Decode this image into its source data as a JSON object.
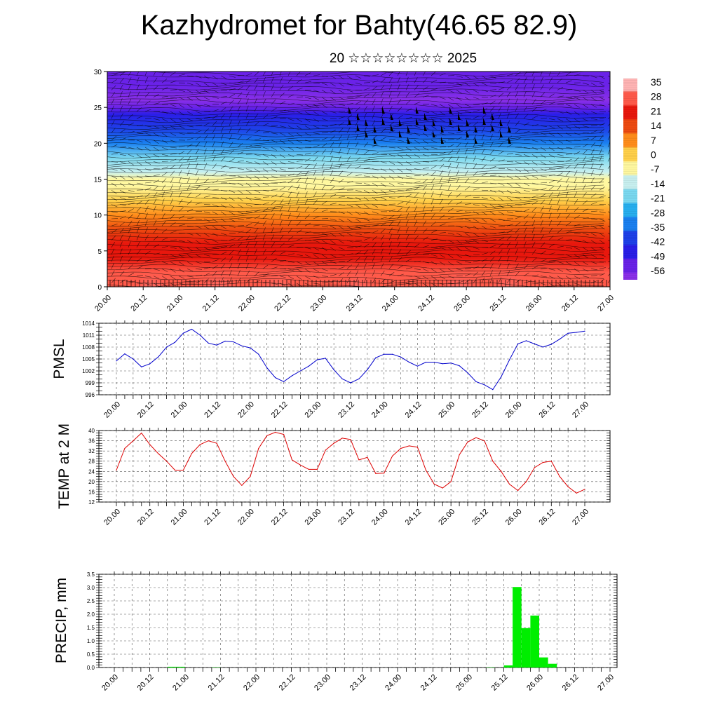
{
  "title": "Kazhydromet for Bahty(46.65 82.9)",
  "subtitle": "20 ☆☆☆☆☆☆☆☆ 2025",
  "time_labels": [
    "20.00",
    "20.12",
    "21.00",
    "21.12",
    "22.00",
    "22.12",
    "23.00",
    "23.12",
    "24.00",
    "24.12",
    "25.00",
    "25.12",
    "26.00",
    "26.12",
    "27.00"
  ],
  "chart_data": [
    {
      "type": "heatmap",
      "title": "",
      "ylabel": "",
      "ylim": [
        0,
        30
      ],
      "y_ticks": [
        0,
        5,
        10,
        15,
        20,
        25,
        30
      ],
      "x_ticks": [
        "20.00",
        "20.12",
        "21.00",
        "21.12",
        "22.00",
        "22.12",
        "23.00",
        "23.12",
        "24.00",
        "24.12",
        "25.00",
        "25.12",
        "26.00",
        "26.12",
        "27.00"
      ],
      "colorbar_labels": [
        "35",
        "28",
        "21",
        "14",
        "7",
        "0",
        "-7",
        "-14",
        "-21",
        "-28",
        "-35",
        "-42",
        "-49",
        "-56"
      ],
      "temperature_profile": {
        "levels": [
          0,
          2,
          4,
          6,
          8,
          10,
          12,
          14,
          15,
          16,
          18,
          20,
          22,
          24,
          25,
          26,
          28,
          30
        ],
        "values": [
          30,
          25,
          22,
          18,
          12,
          6,
          1,
          -5,
          -9,
          -14,
          -22,
          -32,
          -42,
          -52,
          -56,
          -60,
          -58,
          -57
        ]
      },
      "colors": {
        "warm_peak": "#ffb8b8",
        "red": "#e8170d",
        "yellow": "#ffe96a",
        "cyan": "#2cc8f0",
        "blue": "#1a2ee8",
        "violet": "#7a22e8"
      }
    },
    {
      "type": "line",
      "ylabel": "PMSL",
      "ylim": [
        996,
        1014
      ],
      "y_ticks": [
        996,
        999,
        1002,
        1005,
        1008,
        1011,
        1014
      ],
      "color": "#0000cc",
      "x": [
        0,
        3,
        6,
        9,
        12,
        15,
        18,
        21,
        24,
        27,
        30,
        33,
        36,
        39,
        42,
        45,
        48,
        51,
        54,
        57,
        60,
        63,
        66,
        69,
        72,
        75,
        78,
        81,
        84,
        87,
        90,
        93,
        96,
        99,
        102,
        105,
        108,
        111,
        114,
        117,
        120,
        123,
        126,
        129,
        132,
        135,
        138,
        141,
        144,
        147,
        150,
        153,
        156,
        159,
        162,
        165,
        168
      ],
      "values": [
        1004.5,
        1006.3,
        1005.0,
        1003.0,
        1003.8,
        1005.5,
        1008.0,
        1009.2,
        1011.5,
        1012.5,
        1011.0,
        1009.0,
        1008.5,
        1009.5,
        1009.3,
        1008.3,
        1007.8,
        1006.2,
        1002.8,
        1000.3,
        999.3,
        1000.8,
        1002.0,
        1003.2,
        1004.8,
        1005.2,
        1002.3,
        1000.0,
        999.0,
        1000.0,
        1002.3,
        1005.3,
        1006.2,
        1006.2,
        1005.5,
        1004.2,
        1003.2,
        1004.2,
        1004.2,
        1003.8,
        1004.0,
        1003.3,
        1001.5,
        999.3,
        998.5,
        997.3,
        1000.5,
        1004.8,
        1008.8,
        1009.6,
        1008.8,
        1008.0,
        1008.7,
        1010.0,
        1011.5,
        1011.7,
        1012.0
      ]
    },
    {
      "type": "line",
      "ylabel": "TEMP at 2 M",
      "ylim": [
        12,
        40
      ],
      "y_ticks": [
        12,
        16,
        20,
        24,
        28,
        32,
        36,
        40
      ],
      "color": "#dd0000",
      "x": [
        0,
        3,
        6,
        9,
        12,
        15,
        18,
        21,
        24,
        27,
        30,
        33,
        36,
        39,
        42,
        45,
        48,
        51,
        54,
        57,
        60,
        63,
        66,
        69,
        72,
        75,
        78,
        81,
        84,
        87,
        90,
        93,
        96,
        99,
        102,
        105,
        108,
        111,
        114,
        117,
        120,
        123,
        126,
        129,
        132,
        135,
        138,
        141,
        144,
        147,
        150,
        153,
        156,
        159,
        162,
        165,
        168
      ],
      "values": [
        24.5,
        33,
        36,
        39,
        34.5,
        31,
        28,
        24.5,
        24.5,
        31,
        34.5,
        36,
        35,
        28,
        22,
        18.5,
        22,
        33,
        38,
        39.3,
        38.5,
        28.5,
        26.5,
        24.8,
        24.8,
        32.3,
        35,
        37,
        36.5,
        28.5,
        29.5,
        23.2,
        23.3,
        30,
        33,
        34,
        33.5,
        24.5,
        19,
        17.5,
        20,
        30.5,
        35.5,
        37.2,
        36,
        28,
        24,
        19,
        16.5,
        20,
        25.5,
        27.5,
        28,
        22,
        18,
        15.5,
        17
      ]
    },
    {
      "type": "bar",
      "ylabel": "PRECIP, mm",
      "ylim": [
        0,
        3.5
      ],
      "y_ticks": [
        0.0,
        0.5,
        1.0,
        1.5,
        2.0,
        2.5,
        3.0,
        3.5
      ],
      "color": "#00ee00",
      "x": [
        18,
        21,
        33,
        126,
        132,
        135,
        138,
        141,
        144,
        147,
        150
      ],
      "values": [
        0.03,
        0.03,
        0.01,
        0.01,
        0.08,
        3.02,
        1.48,
        1.95,
        0.38,
        0.14,
        0.0
      ]
    }
  ]
}
